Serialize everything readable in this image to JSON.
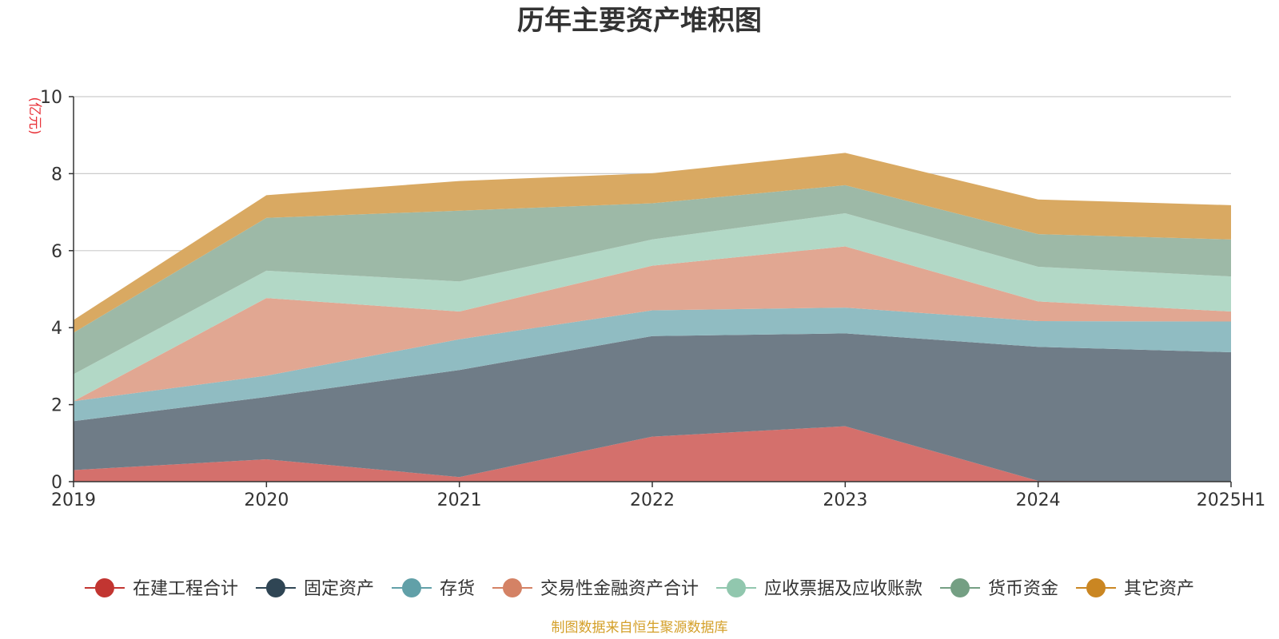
{
  "chart_data": {
    "type": "area",
    "title": "历年主要资产堆积图",
    "unit_label": "(亿元)",
    "source_note": "制图数据来自恒生聚源数据库",
    "categories": [
      "2019",
      "2020",
      "2021",
      "2022",
      "2023",
      "2024",
      "2025H1"
    ],
    "ylim": [
      0,
      10
    ],
    "yticks": [
      0,
      2,
      4,
      6,
      8,
      10
    ],
    "grid": true,
    "stacked": true,
    "legend_position": "bottom",
    "series": [
      {
        "name": "在建工程合计",
        "color": "#c23531",
        "fill": "#d4706c",
        "values": [
          0.3,
          0.58,
          0.12,
          1.17,
          1.44,
          0.02,
          0.01
        ]
      },
      {
        "name": "固定资产",
        "color": "#2f4554",
        "fill": "#6f7c87",
        "values": [
          1.27,
          1.62,
          2.78,
          2.61,
          2.41,
          3.48,
          3.35
        ]
      },
      {
        "name": "存货",
        "color": "#61a0a8",
        "fill": "#90bcc2",
        "values": [
          0.52,
          0.55,
          0.8,
          0.67,
          0.67,
          0.67,
          0.8
        ]
      },
      {
        "name": "交易性金融资产合计",
        "color": "#d48265",
        "fill": "#e1a792",
        "values": [
          0.0,
          2.02,
          0.72,
          1.16,
          1.59,
          0.51,
          0.26
        ]
      },
      {
        "name": "应收票据及应收账款",
        "color": "#91c7ae",
        "fill": "#b2d8c6",
        "values": [
          0.7,
          0.71,
          0.78,
          0.68,
          0.86,
          0.9,
          0.91
        ]
      },
      {
        "name": "货币资金",
        "color": "#749f83",
        "fill": "#9db9a7",
        "values": [
          1.08,
          1.37,
          1.84,
          0.94,
          0.73,
          0.85,
          0.96
        ]
      },
      {
        "name": "其它资产",
        "color": "#ca8622",
        "fill": "#d9a962",
        "values": [
          0.33,
          0.59,
          0.77,
          0.78,
          0.84,
          0.9,
          0.89
        ]
      }
    ]
  }
}
